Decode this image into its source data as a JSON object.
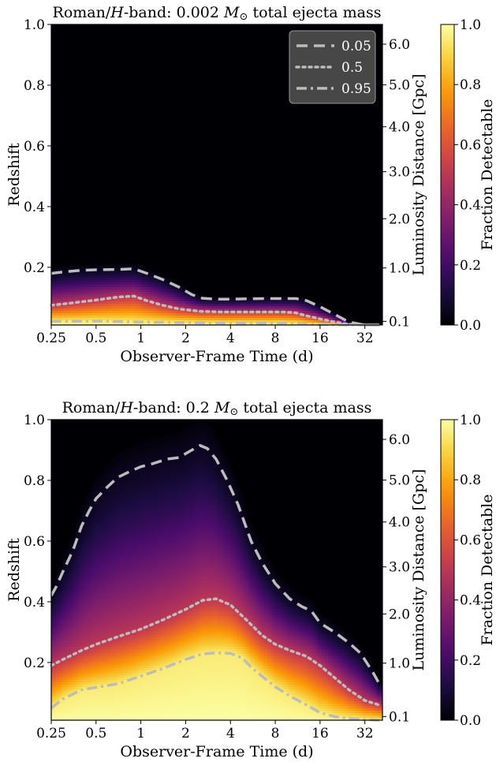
{
  "colors": {
    "inferno": [
      "#000004",
      "#1b0c41",
      "#4a0c6b",
      "#781c6d",
      "#a52c60",
      "#cf4446",
      "#ed6925",
      "#fb9b06",
      "#f7d13d",
      "#fcffa4"
    ],
    "contour": "#bcbcbc",
    "legend_bg": "#4d4d4d",
    "legend_text": "#ffffff"
  },
  "chart_data": [
    {
      "type": "heatmap",
      "title": "Roman/H-band: 0.002 M⊙ total ejecta mass",
      "title_parts": [
        "Roman/",
        "H",
        "-band: 0.002 ",
        "M",
        "⊙",
        " total ejecta mass"
      ],
      "xlabel": "Observer-Frame Time (d)",
      "ylabel": "Redshift",
      "y2label": "Luminosity Distance [Gpc]",
      "colorbar_label": "Fraction Detectable",
      "x_scale": "log",
      "xlim": [
        0.25,
        42
      ],
      "ylim": [
        0.01,
        1.0
      ],
      "xticks": [
        0.25,
        0.5,
        1,
        2,
        4,
        8,
        16,
        32
      ],
      "xtick_labels": [
        "0.25",
        "0.5",
        "1",
        "2",
        "4",
        "8",
        "16",
        "32"
      ],
      "yticks": [
        0.2,
        0.4,
        0.6,
        0.8,
        1.0
      ],
      "ytick_labels": [
        "0.2",
        "0.4",
        "0.6",
        "0.8",
        "1.0"
      ],
      "y2ticks": [
        0.1,
        1.0,
        2.0,
        3.0,
        4.0,
        5.0,
        6.0
      ],
      "y2tick_labels": [
        "0.1",
        "1.0",
        "2.0",
        "3.0",
        "4.0",
        "5.0",
        "6.0"
      ],
      "y2tick_redshift": [
        0.022,
        0.198,
        0.36,
        0.515,
        0.663,
        0.801,
        0.935
      ],
      "colorbar_range": [
        0.0,
        1.0
      ],
      "colorbar_ticks": [
        0.0,
        0.2,
        0.4,
        0.6,
        0.8,
        1.0
      ],
      "colorbar_tick_labels": [
        "0.0",
        "0.2",
        "0.4",
        "0.6",
        "0.8",
        "1.0"
      ],
      "legend": {
        "placement": "top-right",
        "entries": [
          {
            "label": "0.05",
            "style": "dashed"
          },
          {
            "label": "0.5",
            "style": "dotted"
          },
          {
            "label": "0.95",
            "style": "dashdot"
          }
        ]
      },
      "contours": [
        {
          "level": 0.05,
          "style": "dashed",
          "x": [
            0.25,
            0.3,
            0.4,
            0.5,
            0.7,
            0.9,
            1.1,
            1.4,
            1.8,
            2.2,
            2.6,
            3.2,
            4.0,
            5.0,
            7.0,
            9.0,
            11.0,
            13.0,
            16.0,
            20.0,
            25.0,
            32.0,
            40.0
          ],
          "y": [
            0.18,
            0.185,
            0.19,
            0.192,
            0.193,
            0.195,
            0.18,
            0.16,
            0.135,
            0.11,
            0.098,
            0.095,
            0.095,
            0.096,
            0.097,
            0.097,
            0.097,
            0.09,
            0.07,
            0.045,
            0.02,
            0.01,
            0.01
          ]
        },
        {
          "level": 0.5,
          "style": "dotted",
          "x": [
            0.25,
            0.35,
            0.5,
            0.7,
            0.9,
            1.1,
            1.4,
            1.8,
            2.5,
            3.5,
            5.0,
            7.0,
            9.0,
            11.0,
            13.0,
            16.0,
            20.0,
            25.0,
            32.0,
            40.0
          ],
          "y": [
            0.075,
            0.083,
            0.092,
            0.102,
            0.105,
            0.09,
            0.075,
            0.063,
            0.055,
            0.053,
            0.053,
            0.053,
            0.053,
            0.05,
            0.04,
            0.03,
            0.02,
            0.012,
            0.01,
            0.01
          ]
        },
        {
          "level": 0.95,
          "style": "dashdot",
          "x": [
            0.25,
            0.5,
            1.0,
            2.0,
            4.0,
            8.0,
            12.0,
            16.0,
            25.0,
            40.0
          ],
          "y": [
            0.022,
            0.023,
            0.02,
            0.018,
            0.016,
            0.016,
            0.014,
            0.012,
            0.01,
            0.01
          ]
        }
      ]
    },
    {
      "type": "heatmap",
      "title": "Roman/H-band: 0.2 M⊙ total ejecta mass",
      "title_parts": [
        "Roman/",
        "H",
        "-band: 0.2 ",
        "M",
        "⊙",
        " total ejecta mass"
      ],
      "xlabel": "Observer-Frame Time (d)",
      "ylabel": "Redshift",
      "y2label": "Luminosity Distance [Gpc]",
      "colorbar_label": "Fraction Detectable",
      "x_scale": "log",
      "xlim": [
        0.25,
        42
      ],
      "ylim": [
        0.01,
        1.0
      ],
      "xticks": [
        0.25,
        0.5,
        1,
        2,
        4,
        8,
        16,
        32
      ],
      "xtick_labels": [
        "0.25",
        "0.5",
        "1",
        "2",
        "4",
        "8",
        "16",
        "32"
      ],
      "yticks": [
        0.2,
        0.4,
        0.6,
        0.8,
        1.0
      ],
      "ytick_labels": [
        "0.2",
        "0.4",
        "0.6",
        "0.8",
        "1.0"
      ],
      "y2ticks": [
        0.1,
        1.0,
        2.0,
        3.0,
        4.0,
        5.0,
        6.0
      ],
      "y2tick_labels": [
        "0.1",
        "1.0",
        "2.0",
        "3.0",
        "4.0",
        "5.0",
        "6.0"
      ],
      "y2tick_redshift": [
        0.022,
        0.198,
        0.36,
        0.515,
        0.663,
        0.801,
        0.935
      ],
      "colorbar_range": [
        0.0,
        1.0
      ],
      "colorbar_ticks": [
        0.0,
        0.2,
        0.4,
        0.6,
        0.8,
        1.0
      ],
      "colorbar_tick_labels": [
        "0.0",
        "0.2",
        "0.4",
        "0.6",
        "0.8",
        "1.0"
      ],
      "contours": [
        {
          "level": 0.05,
          "style": "dashed",
          "x": [
            0.25,
            0.27,
            0.3,
            0.35,
            0.4,
            0.45,
            0.5,
            0.6,
            0.7,
            0.85,
            1.0,
            1.2,
            1.5,
            1.8,
            2.2,
            2.5,
            2.8,
            3.2,
            3.8,
            4.5,
            5.5,
            6.5,
            8.0,
            10.0,
            12.0,
            14.0,
            16.0,
            20.0,
            25.0,
            30.0,
            36.0,
            40.0
          ],
          "y": [
            0.42,
            0.45,
            0.5,
            0.57,
            0.65,
            0.7,
            0.74,
            0.78,
            0.81,
            0.83,
            0.845,
            0.855,
            0.87,
            0.875,
            0.9,
            0.915,
            0.905,
            0.87,
            0.8,
            0.72,
            0.6,
            0.53,
            0.46,
            0.41,
            0.385,
            0.37,
            0.33,
            0.3,
            0.265,
            0.23,
            0.17,
            0.13
          ]
        },
        {
          "level": 0.5,
          "style": "dotted",
          "x": [
            0.25,
            0.3,
            0.4,
            0.5,
            0.7,
            1.0,
            1.4,
            2.0,
            2.6,
            3.2,
            4.0,
            5.0,
            6.5,
            8.0,
            10.0,
            13.0,
            16.0,
            20.0,
            25.0,
            32.0,
            40.0
          ],
          "y": [
            0.19,
            0.21,
            0.24,
            0.26,
            0.285,
            0.31,
            0.34,
            0.375,
            0.405,
            0.41,
            0.39,
            0.345,
            0.29,
            0.26,
            0.24,
            0.22,
            0.19,
            0.15,
            0.11,
            0.075,
            0.06
          ]
        },
        {
          "level": 0.95,
          "style": "dashdot",
          "x": [
            0.25,
            0.3,
            0.4,
            0.5,
            0.7,
            1.0,
            1.4,
            2.0,
            2.6,
            3.2,
            4.0,
            4.8,
            5.5,
            6.5,
            8.0,
            10.0,
            13.0,
            16.0,
            20.0,
            25.0,
            32.0,
            40.0
          ],
          "y": [
            0.05,
            0.08,
            0.11,
            0.118,
            0.13,
            0.155,
            0.18,
            0.21,
            0.228,
            0.232,
            0.23,
            0.215,
            0.185,
            0.155,
            0.12,
            0.09,
            0.06,
            0.035,
            0.022,
            0.015,
            0.012,
            0.01
          ]
        }
      ]
    }
  ]
}
